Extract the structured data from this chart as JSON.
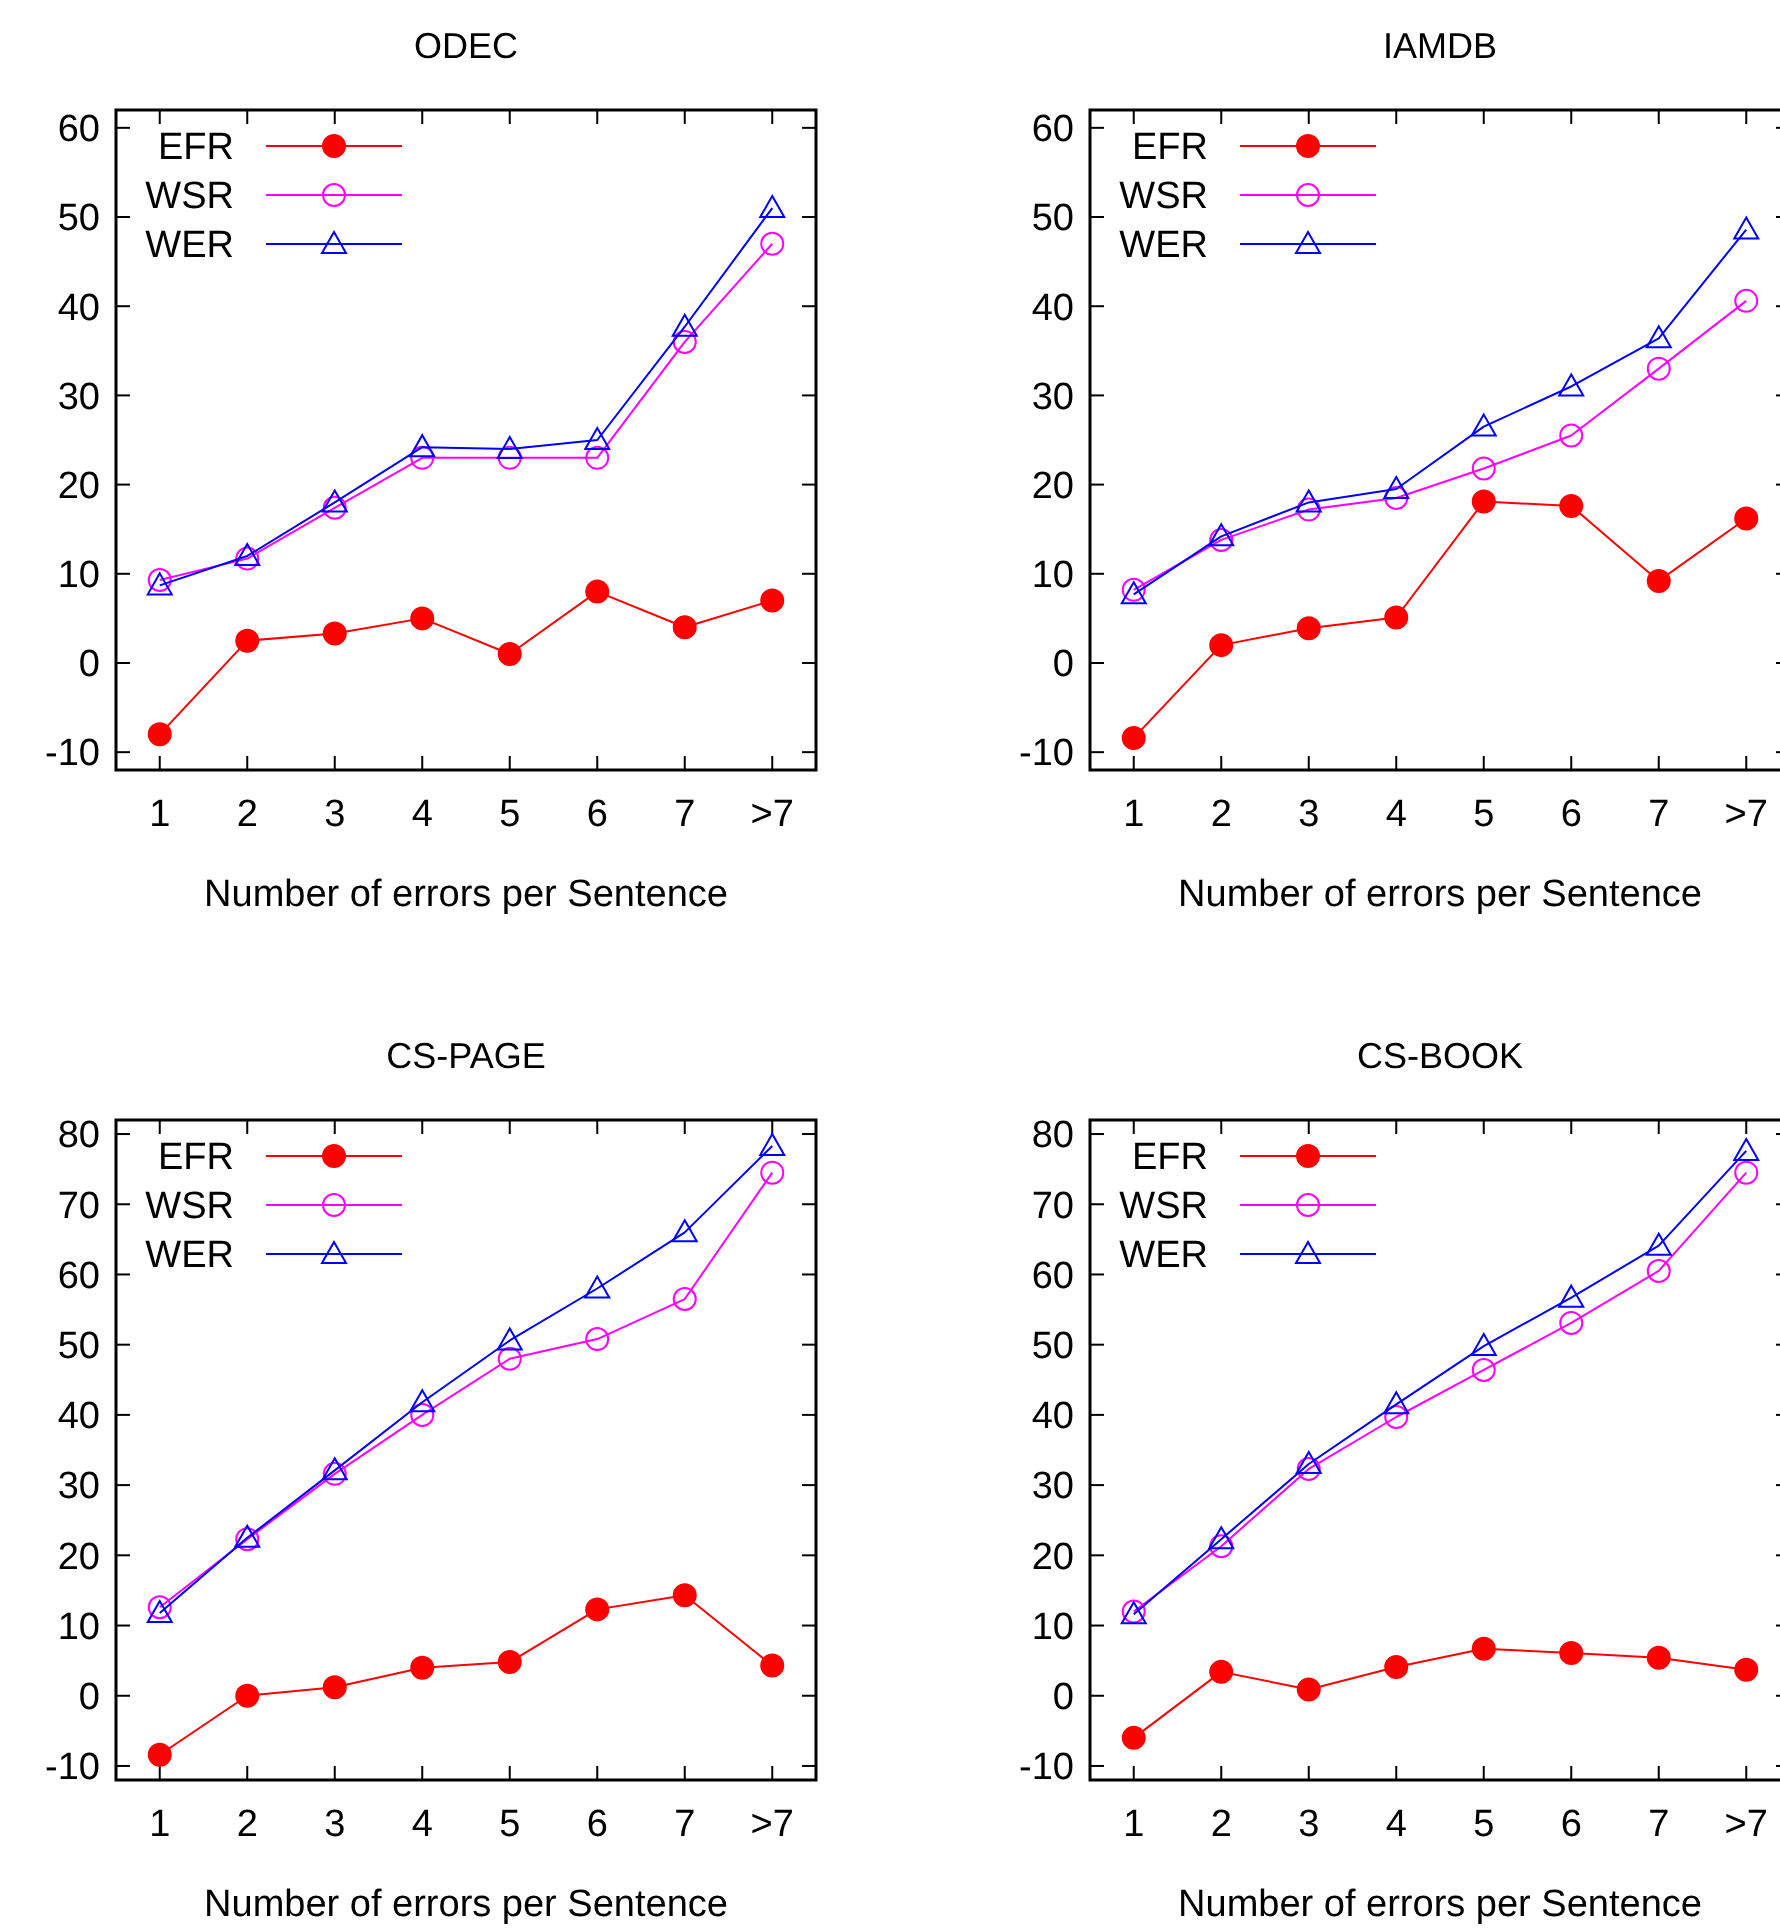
{
  "chart_data": [
    {
      "type": "line",
      "title": "ODEC",
      "xlabel": "Number of errors per Sentence",
      "categories": [
        "1",
        "2",
        "3",
        "4",
        "5",
        "6",
        "7",
        ">7"
      ],
      "ylim": [
        -12,
        62
      ],
      "yticks": [
        -10,
        0,
        10,
        20,
        30,
        40,
        50,
        60
      ],
      "grid": false,
      "legend": "top left",
      "series": [
        {
          "name": "EFR",
          "color": "#ff0000",
          "marker": "circle",
          "values": [
            -8,
            2.5,
            3.3,
            5,
            1,
            8,
            4,
            7
          ]
        },
        {
          "name": "WSR",
          "color": "#ff00ff",
          "marker": "circle",
          "values": [
            9.3,
            11.7,
            17.4,
            23,
            23,
            23,
            36,
            47
          ]
        },
        {
          "name": "WER",
          "color": "#0000ff",
          "marker": "triangle",
          "values": [
            8.7,
            12,
            18,
            24.2,
            24,
            25,
            37.7,
            51
          ]
        }
      ]
    },
    {
      "type": "line",
      "title": "IAMDB",
      "xlabel": "Number of errors per Sentence",
      "categories": [
        "1",
        "2",
        "3",
        "4",
        "5",
        "6",
        "7",
        ">7"
      ],
      "ylim": [
        -12,
        62
      ],
      "yticks": [
        -10,
        0,
        10,
        20,
        30,
        40,
        50,
        60
      ],
      "grid": false,
      "legend": "top left",
      "series": [
        {
          "name": "EFR",
          "color": "#ff0000",
          "marker": "circle",
          "values": [
            -8.4,
            2,
            3.9,
            5.1,
            18.1,
            17.6,
            9.2,
            16.2
          ]
        },
        {
          "name": "WSR",
          "color": "#ff00ff",
          "marker": "circle",
          "values": [
            8.2,
            13.8,
            17.2,
            18.5,
            21.8,
            25.5,
            33,
            40.6
          ]
        },
        {
          "name": "WER",
          "color": "#0000ff",
          "marker": "triangle",
          "values": [
            7.7,
            14.2,
            18,
            19.5,
            26.5,
            31,
            36.4,
            48.6
          ]
        }
      ]
    },
    {
      "type": "line",
      "title": "CS-PAGE",
      "xlabel": "Number of errors per Sentence",
      "categories": [
        "1",
        "2",
        "3",
        "4",
        "5",
        "6",
        "7",
        ">7"
      ],
      "ylim": [
        -12,
        82
      ],
      "yticks": [
        -10,
        0,
        10,
        20,
        30,
        40,
        50,
        60,
        70,
        80
      ],
      "grid": false,
      "legend": "top left",
      "series": [
        {
          "name": "EFR",
          "color": "#ff0000",
          "marker": "circle",
          "values": [
            -8.4,
            0,
            1.2,
            4,
            4.8,
            12.3,
            14.3,
            4.3
          ]
        },
        {
          "name": "WSR",
          "color": "#ff00ff",
          "marker": "circle",
          "values": [
            12.6,
            22.3,
            31.6,
            40,
            48,
            50.8,
            56.5,
            74.5
          ]
        },
        {
          "name": "WER",
          "color": "#0000ff",
          "marker": "triangle",
          "values": [
            11.8,
            22.5,
            32.1,
            41.8,
            50.6,
            58,
            66,
            78.3
          ]
        }
      ]
    },
    {
      "type": "line",
      "title": "CS-BOOK",
      "xlabel": "Number of errors per Sentence",
      "categories": [
        "1",
        "2",
        "3",
        "4",
        "5",
        "6",
        "7",
        ">7"
      ],
      "ylim": [
        -12,
        82
      ],
      "yticks": [
        -10,
        0,
        10,
        20,
        30,
        40,
        50,
        60,
        70,
        80
      ],
      "grid": false,
      "legend": "top left",
      "series": [
        {
          "name": "EFR",
          "color": "#ff0000",
          "marker": "circle",
          "values": [
            -6,
            3.4,
            0.9,
            4.1,
            6.7,
            6.1,
            5.4,
            3.7
          ]
        },
        {
          "name": "WSR",
          "color": "#ff00ff",
          "marker": "circle",
          "values": [
            12,
            21.3,
            32.3,
            39.7,
            46.4,
            53.1,
            60.5,
            74.5
          ]
        },
        {
          "name": "WER",
          "color": "#0000ff",
          "marker": "triangle",
          "values": [
            11.6,
            22.3,
            33,
            41.5,
            49.8,
            56.7,
            64.1,
            77.6
          ]
        }
      ]
    }
  ]
}
